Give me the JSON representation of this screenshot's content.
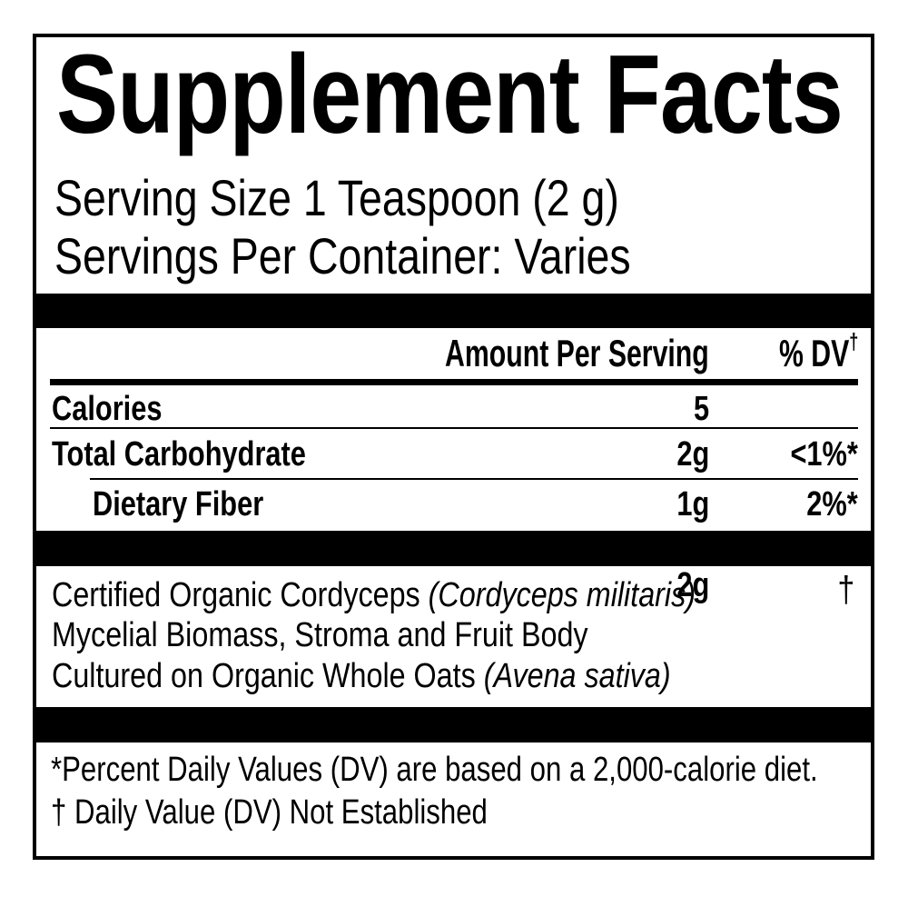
{
  "supplement_facts": {
    "title": "Supplement Facts",
    "serving_size": "Serving Size 1 Teaspoon (2 g)",
    "servings_per_container": "Servings Per Container: Varies",
    "columns": {
      "amount": "Amount Per Serving",
      "daily_value": "% DV",
      "daily_value_superscript": "†"
    },
    "nutrients": [
      {
        "name": "Calories",
        "amount": "5",
        "daily_value": ""
      },
      {
        "name": "Total Carbohydrate",
        "amount": "2g",
        "daily_value": "<1%*"
      },
      {
        "name": "Dietary Fiber",
        "amount": "1g",
        "daily_value": "2%*"
      }
    ],
    "ingredient": {
      "name_text_1": "Certified Organic Cordyceps ",
      "name_botanical_1": "(Cordyceps militaris)",
      "name_line_2": "Mycelial Biomass, Stroma and Fruit Body",
      "name_text_3": "Cultured on Organic Whole Oats ",
      "name_botanical_2": "(Avena sativa)",
      "amount": "2g",
      "daily_value": "†"
    },
    "footnotes": {
      "percent_dv": "*Percent Daily Values (DV) are based on a 2,000-calorie diet.",
      "not_established": "† Daily Value (DV) Not Established"
    },
    "colors": {
      "ink": "#000000",
      "paper": "#ffffff"
    }
  }
}
